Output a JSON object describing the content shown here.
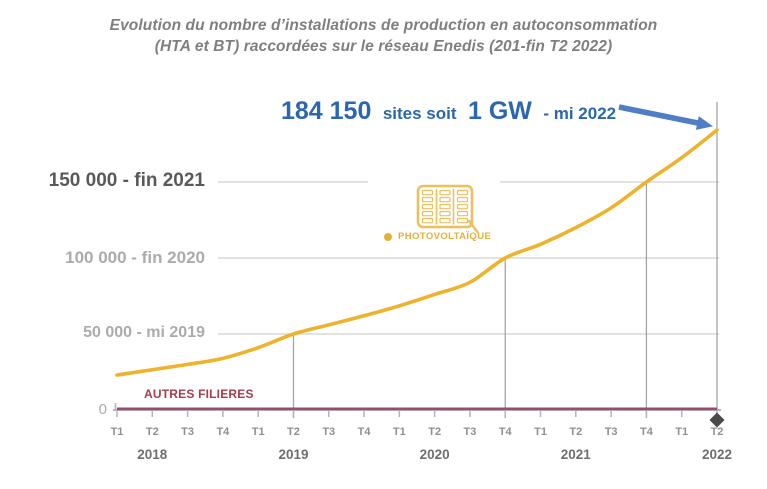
{
  "title": {
    "line1": "Evolution du nombre d’installations de production en autoconsommation",
    "line2": "(HTA et BT) raccordées sur le réseau Enedis (201-fin T2 2022)"
  },
  "annotation": {
    "value": "184 150",
    "mid": "sites soit",
    "gw": "1 GW",
    "tail": "- mi 2022"
  },
  "y_axis": {
    "reference_labels": [
      {
        "text": "150 000 - fin 2021",
        "value": 150000,
        "strong": true
      },
      {
        "text": "100 000 - fin 2020",
        "value": 100000,
        "strong": false
      },
      {
        "text": "50 000 - mi 2019",
        "value": 50000,
        "strong": false
      }
    ],
    "zero_label": "0"
  },
  "x_axis": {
    "tick_labels": [
      "T1",
      "T2",
      "T3",
      "T4",
      "T1",
      "T2",
      "T3",
      "T4",
      "T1",
      "T2",
      "T3",
      "T4",
      "T1",
      "T2",
      "T3",
      "T4",
      "T1",
      "T2"
    ],
    "years": [
      {
        "label": "2018",
        "tick_index": 1
      },
      {
        "label": "2019",
        "tick_index": 5
      },
      {
        "label": "2020",
        "tick_index": 9
      },
      {
        "label": "2021",
        "tick_index": 13
      },
      {
        "label": "2022",
        "tick_index": 17
      }
    ]
  },
  "legend": {
    "pv": "PHOTOVOLTAÏQUE",
    "autres": "AUTRES FILIERES"
  },
  "colors": {
    "pv_line": "#EEB32C",
    "autres_line": "#9B4D62",
    "annotation_blue": "#2A67AE",
    "arrow_blue": "#4F7DC8",
    "icon_gold": "#ECC05E",
    "legend_gold": "#E9AE35",
    "title_gray": "#7F7F7F",
    "axis": "#B5B1C4",
    "grid": "#D8D8D8",
    "marker_line": "#A5A5A5",
    "diamond": "#4A4A4A"
  },
  "chart_data": {
    "type": "line",
    "title": "Evolution du nombre d’installations de production en autoconsommation (HTA et BT) raccordées sur le réseau Enedis (201-fin T2 2022)",
    "x": [
      "T1 2018",
      "T2 2018",
      "T3 2018",
      "T4 2018",
      "T1 2019",
      "T2 2019",
      "T3 2019",
      "T4 2019",
      "T1 2020",
      "T2 2020",
      "T3 2020",
      "T4 2020",
      "T1 2021",
      "T2 2021",
      "T3 2021",
      "T4 2021",
      "T1 2022",
      "T2 2022"
    ],
    "series": [
      {
        "name": "PHOTOVOLTAÏQUE",
        "color": "#EEB32C",
        "values": [
          23000,
          26500,
          30000,
          34000,
          41000,
          50000,
          56000,
          62000,
          68500,
          76000,
          84000,
          100000,
          109000,
          120000,
          133000,
          150000,
          166000,
          184150
        ]
      },
      {
        "name": "AUTRES FILIERES",
        "color": "#9B4D62",
        "values": [
          800,
          800,
          800,
          800,
          800,
          800,
          800,
          800,
          800,
          800,
          800,
          800,
          800,
          800,
          800,
          800,
          800,
          800
        ]
      }
    ],
    "milestones": [
      {
        "x": "T2 2019",
        "index": 5,
        "value": 50000,
        "label": "50 000 - mi 2019"
      },
      {
        "x": "T4 2020",
        "index": 11,
        "value": 100000,
        "label": "100 000 - fin 2020"
      },
      {
        "x": "T4 2021",
        "index": 15,
        "value": 150000,
        "label": "150 000 - fin 2021"
      },
      {
        "x": "T2 2022",
        "index": 17,
        "value": 184150,
        "label": "184 150 sites soit 1 GW - mi 2022"
      }
    ],
    "xlabel": "",
    "ylabel": "",
    "ylim": [
      0,
      200000
    ],
    "grid": "horizontal reference lines at 50000 / 100000 / 150000, vertical drop lines at milestones",
    "legend_position": "center of plot, panel icon above label"
  }
}
